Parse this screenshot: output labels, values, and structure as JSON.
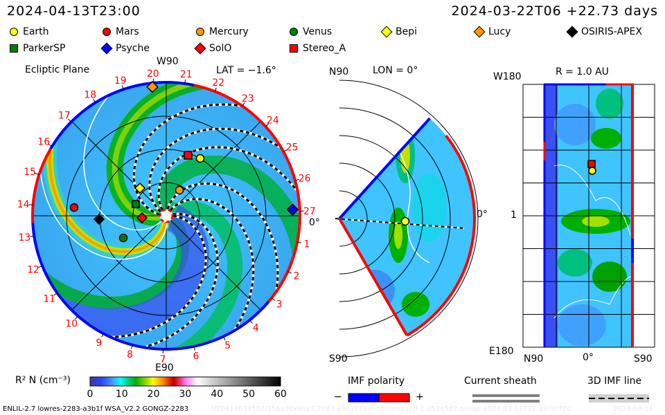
{
  "header": {
    "left_time": "2024-04-13T23:00",
    "right_time": "2024-03-22T06 +22.73 days"
  },
  "legend": [
    {
      "label": "Earth",
      "shape": "circle",
      "color": "#ffff00"
    },
    {
      "label": "Mars",
      "shape": "circle",
      "color": "#ff0000"
    },
    {
      "label": "Mercury",
      "shape": "circle",
      "color": "#ff9900"
    },
    {
      "label": "Venus",
      "shape": "circle",
      "color": "#008000"
    },
    {
      "label": "Bepi",
      "shape": "diamond",
      "color": "#ffff00"
    },
    {
      "label": "Lucy",
      "shape": "diamond",
      "color": "#ff9900"
    },
    {
      "label": "OSIRIS-APEX",
      "shape": "diamond",
      "color": "#000000"
    },
    {
      "label": "ParkerSP",
      "shape": "square",
      "color": "#008000"
    },
    {
      "label": "Psyche",
      "shape": "diamond",
      "color": "#0000ff"
    },
    {
      "label": "SolO",
      "shape": "diamond",
      "color": "#ff0000"
    },
    {
      "label": "Stereo_A",
      "shape": "square",
      "color": "#ff0000"
    }
  ],
  "ecliptic": {
    "title": "Ecliptic Plane",
    "top_label": "W90",
    "bottom_label": "E90",
    "right_label": "0°",
    "lat": "LAT = −1.6°",
    "day_labels": [
      "1",
      "2",
      "3",
      "4",
      "5",
      "6",
      "7",
      "8",
      "9",
      "10",
      "11",
      "12",
      "13",
      "14",
      "15",
      "16",
      "17",
      "18",
      "19",
      "20",
      "21",
      "22",
      "23",
      "24",
      "25",
      "26",
      "27"
    ]
  },
  "meridional": {
    "top_label": "N90",
    "bottom_label": "S90",
    "lon": "LON = 0°",
    "right_label": "0°"
  },
  "radial": {
    "title": "R = 1.0 AU",
    "top_left": "W180",
    "bottom_left": "E180",
    "mid_left": "1",
    "x_labels": [
      "N90",
      "0°",
      "S90"
    ]
  },
  "colorbar": {
    "label": "R² N (cm⁻³)",
    "ticks": [
      "0",
      "10",
      "20",
      "30",
      "40",
      "50",
      "60"
    ]
  },
  "imf_polarity": {
    "title": "IMF polarity",
    "minus": "−",
    "plus": "+",
    "neg_color": "#0000ff",
    "pos_color": "#ff0000"
  },
  "current_sheath": {
    "title": "Current sheath"
  },
  "imf_line": {
    "title": "3D IMF line"
  },
  "footer": {
    "model": "ENLIL-2.7 lowres-2283-a3b1f WSA_V2.2 GONGZ-2283",
    "run_id": "UE0414034502/256x30x90x1.2283-a3b1f.16-mcp1umn1cd-1.g53q5d2.gongz-2024:03:12T22:39:00T00",
    "date": "2024-04-14"
  }
}
